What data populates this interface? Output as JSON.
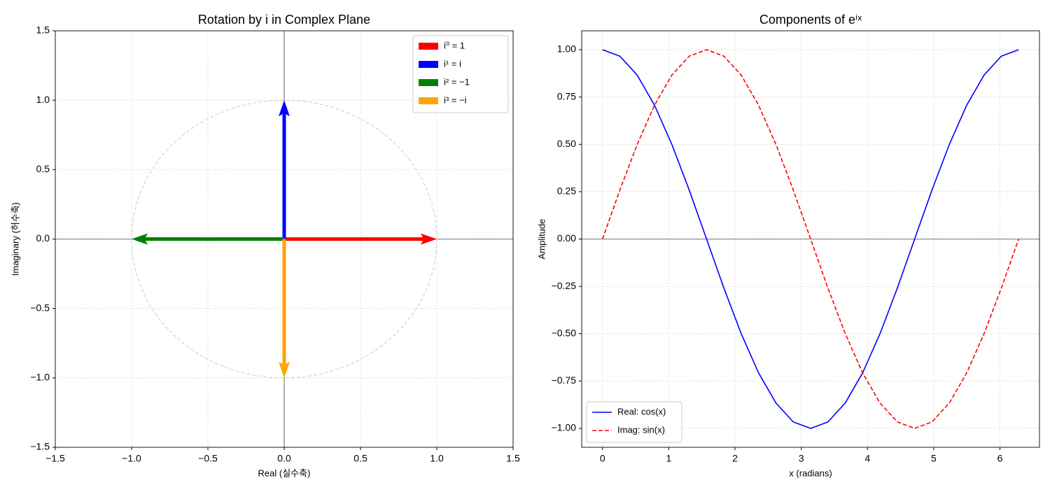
{
  "chart_data": [
    {
      "type": "vector",
      "title": "Rotation by i in Complex Plane",
      "xlabel": "Real (실수축)",
      "ylabel": "Imaginary (허수축)",
      "series": [
        {
          "name": "i⁰ = 1",
          "color": "#ff0000",
          "dx": 1,
          "dy": 0
        },
        {
          "name": "i¹ = i",
          "color": "#0000ff",
          "dx": 0,
          "dy": 1
        },
        {
          "name": "i² = −1",
          "color": "#008000",
          "dx": -1,
          "dy": 0
        },
        {
          "name": "i³ = −i",
          "color": "#ffa500",
          "dx": 0,
          "dy": -1
        }
      ],
      "unit_circle": {
        "radius": 1,
        "color": "#d3d3d3"
      },
      "hline": 0,
      "vline": 0,
      "xlim": [
        -1.5,
        1.5
      ],
      "ylim": [
        -1.5,
        1.5
      ],
      "xticks": [
        {
          "value": -1.5,
          "label": "−1.5"
        },
        {
          "value": -1,
          "label": "−1.0"
        },
        {
          "value": -0.5,
          "label": "−0.5"
        },
        {
          "value": 0,
          "label": "0.0"
        },
        0.5,
        {
          "value": 1,
          "label": "1.0"
        },
        1.5
      ],
      "yticks": [
        {
          "value": -1.5,
          "label": "−1.5"
        },
        {
          "value": -1,
          "label": "−1.0"
        },
        {
          "value": -0.5,
          "label": "−0.5"
        },
        {
          "value": 0,
          "label": "0.0"
        },
        0.5,
        {
          "value": 1,
          "label": "1.0"
        },
        1.5
      ],
      "grid": true,
      "legend": "upper right"
    },
    {
      "type": "line",
      "title": "Components of eⁱˣ",
      "xlabel": "x (radians)",
      "ylabel": "Amplitude",
      "x": [
        0,
        0.262,
        0.524,
        0.785,
        1.047,
        1.309,
        1.571,
        1.833,
        2.094,
        2.356,
        2.618,
        2.88,
        3.142,
        3.403,
        3.665,
        3.927,
        4.189,
        4.451,
        4.712,
        4.974,
        5.236,
        5.498,
        5.76,
        6.021,
        6.283
      ],
      "series": [
        {
          "name": "Real: cos(x)",
          "color": "#0000ff",
          "linestyle": "solid",
          "values": [
            1,
            0.966,
            0.866,
            0.707,
            0.5,
            0.259,
            0,
            -0.259,
            -0.5,
            -0.707,
            -0.866,
            -0.966,
            -1,
            -0.966,
            -0.866,
            -0.707,
            -0.5,
            -0.259,
            0,
            0.259,
            0.5,
            0.707,
            0.866,
            0.966,
            1
          ]
        },
        {
          "name": "Imag: sin(x)",
          "color": "#ff0000",
          "linestyle": "dashed",
          "values": [
            0,
            0.259,
            0.5,
            0.707,
            0.866,
            0.966,
            1,
            0.966,
            0.866,
            0.707,
            0.5,
            0.259,
            0,
            -0.259,
            -0.5,
            -0.707,
            -0.866,
            -0.966,
            -1,
            -0.966,
            -0.866,
            -0.707,
            -0.5,
            -0.259,
            0
          ]
        }
      ],
      "hline": 0,
      "xlim": [
        -0.314,
        6.597
      ],
      "ylim": [
        -1.1,
        1.1
      ],
      "xticks": [
        0,
        1,
        2,
        3,
        4,
        5,
        6
      ],
      "yticks": [
        {
          "value": -1,
          "label": "−1.00"
        },
        {
          "value": -0.75,
          "label": "−0.75"
        },
        {
          "value": -0.5,
          "label": "−0.50"
        },
        {
          "value": -0.25,
          "label": "−0.25"
        },
        {
          "value": 0,
          "label": "0.00"
        },
        {
          "value": 0.25,
          "label": "0.25"
        },
        {
          "value": 0.5,
          "label": "0.50"
        },
        {
          "value": 0.75,
          "label": "0.75"
        },
        {
          "value": 1,
          "label": "1.00"
        }
      ],
      "grid": true,
      "legend": "lower left"
    }
  ]
}
